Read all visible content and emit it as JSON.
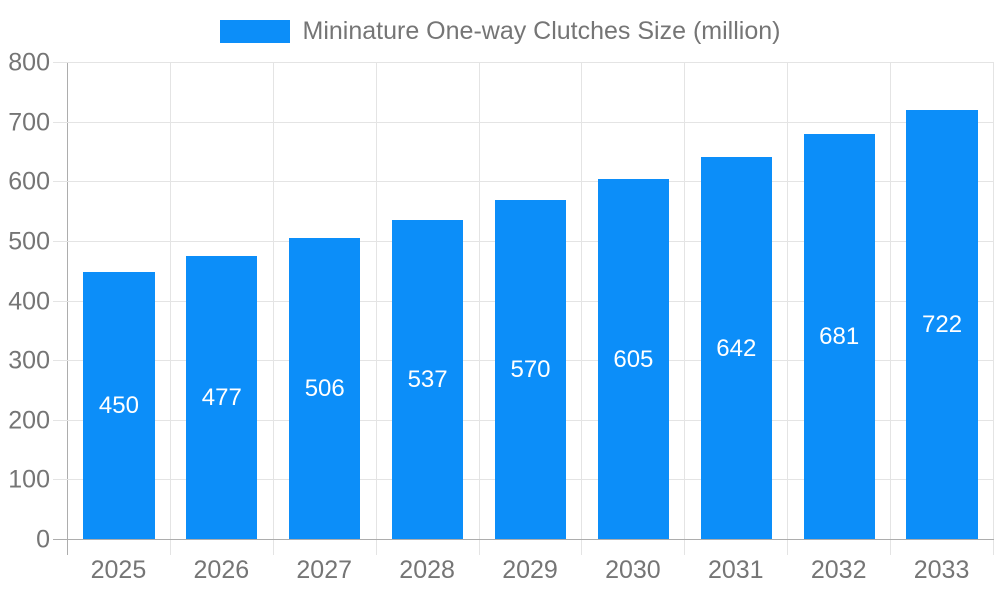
{
  "legend": {
    "label": "Mininature One-way Clutches Size (million)"
  },
  "chart_data": {
    "type": "bar",
    "title": "",
    "series_name": "Mininature One-way Clutches Size (million)",
    "categories": [
      "2025",
      "2026",
      "2027",
      "2028",
      "2029",
      "2030",
      "2031",
      "2032",
      "2033"
    ],
    "values": [
      450,
      477,
      506,
      537,
      570,
      605,
      642,
      681,
      722
    ],
    "xlabel": "",
    "ylabel": "",
    "ylim": [
      0,
      800
    ],
    "ytick_step": 100,
    "yticks": [
      0,
      100,
      200,
      300,
      400,
      500,
      600,
      700,
      800
    ],
    "grid": true,
    "legend_position": "top",
    "bar_value_labels_inside": true,
    "colors": {
      "bar": "#0C8EF9",
      "bar_label": "#FFFFFF",
      "tick_label": "#757575",
      "axis_line": "#ADADAD",
      "gridline": "#E4E4E4"
    }
  }
}
